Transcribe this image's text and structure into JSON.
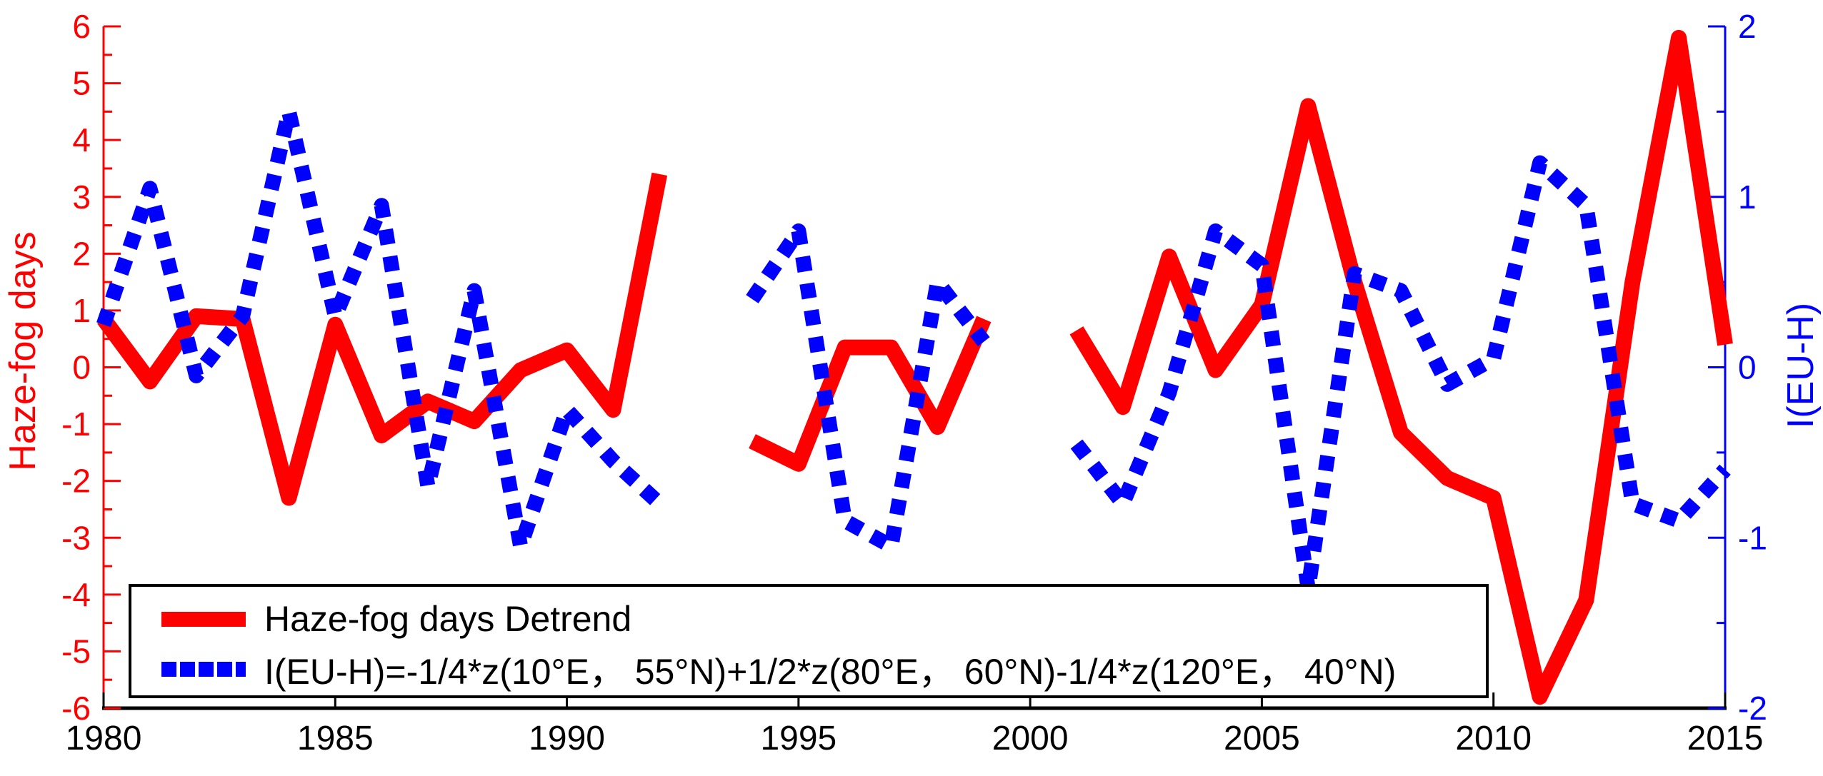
{
  "figure": {
    "background": "#ffffff"
  },
  "chart_data": {
    "type": "line",
    "title": "",
    "grid": false,
    "x": [
      1980,
      1981,
      1982,
      1983,
      1984,
      1985,
      1986,
      1987,
      1988,
      1989,
      1990,
      1991,
      1992,
      1993,
      1994,
      1995,
      1996,
      1997,
      1998,
      1999,
      2000,
      2001,
      2002,
      2003,
      2004,
      2005,
      2006,
      2007,
      2008,
      2009,
      2010,
      2011,
      2012,
      2013,
      2014,
      2015
    ],
    "series": [
      {
        "name": "Haze-fog days Detrend",
        "axis": "left",
        "color": "#ff0000",
        "style": "solid",
        "values": [
          0.85,
          -0.25,
          0.9,
          0.85,
          -2.3,
          0.75,
          -1.2,
          -0.6,
          -0.95,
          -0.05,
          0.3,
          -0.75,
          3.4,
          null,
          -1.3,
          -1.7,
          0.35,
          0.35,
          -1.05,
          0.85,
          null,
          0.65,
          -0.7,
          1.95,
          -0.05,
          1.1,
          4.6,
          1.5,
          -1.15,
          -1.95,
          -2.3,
          -5.8,
          -4.1,
          1.5,
          5.8,
          0.4
        ]
      },
      {
        "name": "I(EU-H)=-1/4*z(10°E， 55°N)+1/2*z(80°E， 60°N)-1/4*z(120°E， 40°N)",
        "axis": "right",
        "color": "#0000ff",
        "style": "dotted",
        "values": [
          0.25,
          1.05,
          -0.05,
          0.3,
          1.5,
          0.3,
          0.95,
          -0.7,
          0.45,
          -1.05,
          -0.25,
          -0.55,
          -0.8,
          null,
          0.4,
          0.8,
          -0.9,
          -1.05,
          0.5,
          0.15,
          null,
          -0.45,
          -0.8,
          -0.15,
          0.8,
          0.6,
          -1.3,
          0.55,
          0.45,
          -0.1,
          0.05,
          1.2,
          0.95,
          -0.8,
          -0.9,
          -0.6
        ]
      }
    ],
    "x_axis": {
      "range": [
        1980,
        2015
      ],
      "ticks": [
        1980,
        1985,
        1990,
        1995,
        2000,
        2005,
        2010,
        2015
      ],
      "color": "#000000"
    },
    "left_axis": {
      "label": "Haze-fog days",
      "color": "#ff0000",
      "range": [
        -6,
        6
      ],
      "ticks": [
        -6,
        -5,
        -4,
        -3,
        -2,
        -1,
        0,
        1,
        2,
        3,
        4,
        5,
        6
      ],
      "minor_step": 0.5
    },
    "right_axis": {
      "label": "I(EU-H)",
      "color": "#0000ff",
      "range": [
        -2,
        2
      ],
      "ticks": [
        -2,
        -1,
        0,
        1,
        2
      ],
      "minor_step": 0.5
    },
    "legend": {
      "position": "bottom-left",
      "entries": [
        {
          "label": "Haze-fog days Detrend",
          "color": "#ff0000",
          "style": "solid"
        },
        {
          "label": "I(EU-H)=-1/4*z(10°E， 55°N)+1/2*z(80°E， 60°N)-1/4*z(120°E， 40°N)",
          "color": "#0000ff",
          "style": "dotted"
        }
      ]
    }
  }
}
